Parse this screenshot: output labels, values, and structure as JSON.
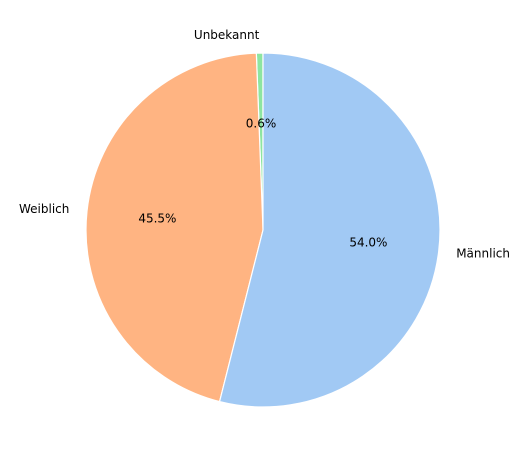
{
  "chart_data": {
    "type": "pie",
    "categories": [
      "Unbekannt",
      "Weiblich",
      "Männlich"
    ],
    "values": [
      0.6,
      45.5,
      54.0
    ],
    "percent_labels": [
      "0.6%",
      "45.5%",
      "54.0%"
    ],
    "colors": [
      "#8de5a1",
      "#ffb482",
      "#a1c9f4"
    ],
    "legend": "none"
  }
}
